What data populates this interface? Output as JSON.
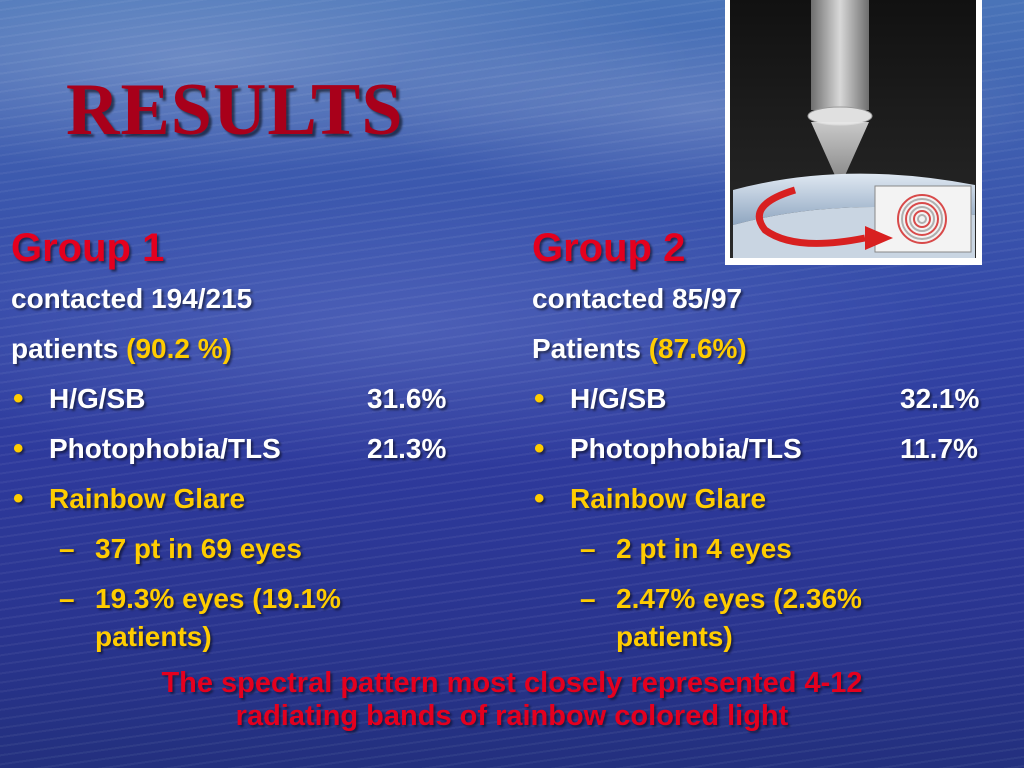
{
  "slide": {
    "title": "RESULTS",
    "figure": {
      "icon": "lens-beam-rainbow-diagram"
    },
    "groups": [
      {
        "title": "Group 1",
        "contacted": "contacted 194/215",
        "patients_label": "patients",
        "patients_pct": "(90.2 %)",
        "items": [
          {
            "label": "H/G/SB",
            "value": "31.6%"
          },
          {
            "label": "Photophobia/TLS",
            "value": "21.3%"
          }
        ],
        "rainbow_label": "Rainbow Glare",
        "sub_items": [
          "37 pt in 69 eyes",
          "19.3% eyes (19.1% patients)"
        ],
        "sub_items_wrapped": [
          "19.3% eyes (19.1%",
          "patients)"
        ]
      },
      {
        "title": "Group 2",
        "contacted": "contacted 85/97",
        "patients_label": "Patients",
        "patients_pct": "(87.6%)",
        "items": [
          {
            "label": "H/G/SB",
            "value": "32.1%"
          },
          {
            "label": "Photophobia/TLS",
            "value": "11.7%"
          }
        ],
        "rainbow_label": "Rainbow Glare",
        "sub_items": [
          "2 pt in 4 eyes",
          "2.47% eyes (2.36% patients)"
        ],
        "sub_items_wrapped": [
          "2.47% eyes (2.36%",
          "patients)"
        ]
      }
    ],
    "footer": [
      "The spectral pattern most closely represented 4-12",
      "radiating bands of rainbow colored light"
    ],
    "colors": {
      "title": "#a8001a",
      "heading": "#e4001e",
      "highlight": "#ffcc00",
      "text": "#ffffff"
    }
  }
}
